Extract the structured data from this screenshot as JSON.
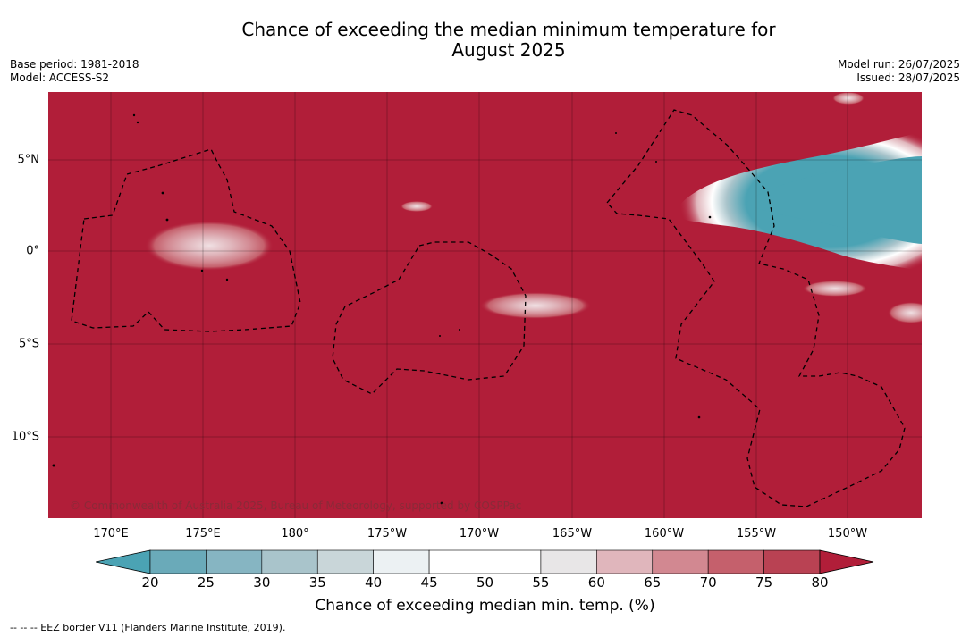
{
  "title_line1": "Chance of exceeding the median minimum temperature for",
  "title_line2": "August 2025",
  "meta_left": [
    "Base period: 1981-2018",
    "Model: ACCESS-S2"
  ],
  "meta_right": [
    "Model run: 26/07/2025",
    "Issued: 28/07/2025"
  ],
  "lon_ticks": [
    "170°E",
    "175°E",
    "180°",
    "175°W",
    "170°W",
    "165°W",
    "160°W",
    "155°W",
    "150°W"
  ],
  "lat_ticks": [
    "5°N",
    "0°",
    "5°S",
    "10°S"
  ],
  "credit": "© Commonwealth of Australia 2025, Bureau of Meteorology, supported by COSPPac",
  "colorbar": {
    "title": "Chance of exceeding median min. temp. (%)",
    "labels": [
      "20",
      "25",
      "30",
      "35",
      "40",
      "45",
      "50",
      "55",
      "60",
      "65",
      "70",
      "75",
      "80"
    ],
    "colors": [
      "#6aaab9",
      "#86b5c2",
      "#a9c4cb",
      "#c9d6d9",
      "#ecf1f3",
      "#ffffff",
      "#ffffff",
      "#e8e6e7",
      "#e0b6bc",
      "#d28891",
      "#c5606c",
      "#b94253"
    ],
    "under_color": "#4ba3b4",
    "over_color": "#b11e39"
  },
  "map_colors": {
    "background": "#b11e39",
    "cool_core": "#4ba3b4"
  },
  "footnote": "--  --  -- EEZ border V11 (Flanders Marine Institute, 2019)."
}
